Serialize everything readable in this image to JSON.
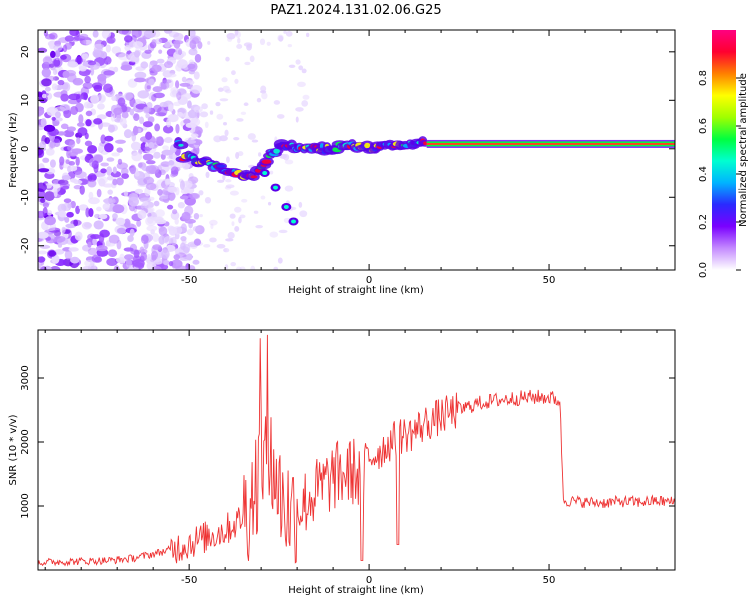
{
  "figure_title": "PAZ1.2024.131.02.06.G25",
  "chart_data": [
    {
      "type": "heatmap",
      "xlabel": "Height of straight line (km)",
      "ylabel": "Frequency (Hz)",
      "xlim": [
        -92,
        85
      ],
      "ylim": [
        -25,
        24.5
      ],
      "xticks": [
        -50,
        0,
        50
      ],
      "yticks": [
        -20,
        -10,
        0,
        10,
        20
      ],
      "colorbar": {
        "label": "Normalized spectral amplitude",
        "range": [
          0,
          1
        ],
        "ticks": [
          0.0,
          0.2,
          0.4,
          0.6,
          0.8
        ],
        "tick_labels": [
          "0.0",
          "0.2",
          "0.4",
          "0.6",
          "0.8"
        ],
        "colormap": [
          "#ffffff",
          "#c48aff",
          "#7a00ff",
          "#2a2aff",
          "#00b4ff",
          "#00ffd0",
          "#00ff40",
          "#a0ff00",
          "#ffff00",
          "#ff8000",
          "#ff0030",
          "#ff0080"
        ]
      },
      "ridge": [
        {
          "x": -52,
          "y": -1.5
        },
        {
          "x": -45,
          "y": -3
        },
        {
          "x": -38,
          "y": -5
        },
        {
          "x": -33,
          "y": -6
        },
        {
          "x": -30,
          "y": -4
        },
        {
          "x": -27,
          "y": -1
        },
        {
          "x": -24,
          "y": 1
        },
        {
          "x": -19,
          "y": 0
        },
        {
          "x": -14,
          "y": 0
        },
        {
          "x": -10,
          "y": 0
        },
        {
          "x": -6,
          "y": 1
        },
        {
          "x": -3,
          "y": 0.5
        },
        {
          "x": 0,
          "y": 0
        },
        {
          "x": 5,
          "y": 0.5
        },
        {
          "x": 10,
          "y": 1
        },
        {
          "x": 15,
          "y": 1.5
        },
        {
          "x": 20,
          "y": 1
        },
        {
          "x": 85,
          "y": 1
        }
      ],
      "secondary_branch": [
        {
          "x": -29,
          "y": -5
        },
        {
          "x": -26,
          "y": -8
        },
        {
          "x": -23,
          "y": -12
        },
        {
          "x": -21,
          "y": -15
        }
      ],
      "carrier_band": {
        "x_start": 16,
        "x_end": 85,
        "frequency": 1.0
      }
    },
    {
      "type": "line",
      "xlabel": "Height of straight line (km)",
      "ylabel": "SNR (10 * v/v)",
      "xlim": [
        -92,
        85
      ],
      "ylim": [
        0,
        3750
      ],
      "xticks": [
        -50,
        0,
        50
      ],
      "yticks": [
        1000,
        2000,
        3000
      ],
      "color": "#ee3333",
      "series": [
        {
          "x": [
            -92,
            -85,
            -78,
            -72,
            -66,
            -60,
            -55,
            -50,
            -45,
            -40,
            -36,
            -33,
            -30,
            -28,
            -25,
            -22,
            -19,
            -16,
            -13,
            -10,
            -7,
            -4,
            -2,
            0,
            3,
            6,
            9,
            12,
            16,
            20,
            25,
            30,
            35,
            40,
            45,
            50,
            53,
            54,
            55,
            60,
            65,
            70,
            75,
            80,
            85
          ],
          "values": [
            120,
            130,
            140,
            150,
            180,
            250,
            320,
            420,
            520,
            620,
            780,
            1050,
            1700,
            1900,
            1200,
            900,
            1000,
            1150,
            1300,
            1450,
            1500,
            1550,
            1400,
            1750,
            1850,
            2000,
            2100,
            2150,
            2300,
            2400,
            2500,
            2600,
            2650,
            2680,
            2700,
            2700,
            2650,
            1100,
            1080,
            1060,
            1050,
            1070,
            1060,
            1080,
            1060
          ]
        }
      ]
    }
  ]
}
